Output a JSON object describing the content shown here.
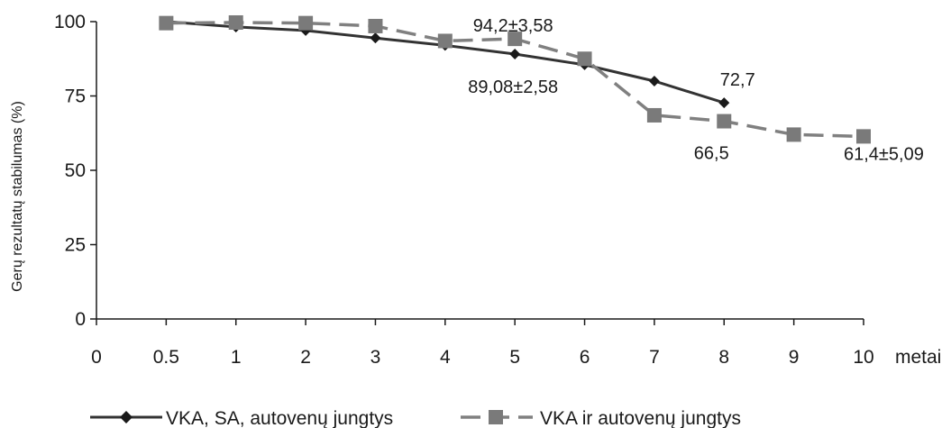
{
  "chart_data": {
    "type": "line",
    "title": "",
    "ylabel": "Gerų rezultatų stabilumas (%)",
    "xlabel": "metai",
    "categories": [
      "0",
      "0.5",
      "1",
      "2",
      "3",
      "4",
      "5",
      "6",
      "7",
      "8",
      "9",
      "10"
    ],
    "ylim": [
      0,
      100
    ],
    "yticks": [
      0,
      25,
      50,
      75,
      100
    ],
    "grid": false,
    "legend_position": "bottom",
    "series": [
      {
        "name": "VKA, SA, autovenų jungtys",
        "style": "solid",
        "marker": "diamond",
        "color": "#333333",
        "values": [
          null,
          100,
          98.2,
          97,
          94.5,
          92,
          89.08,
          85.5,
          80,
          72.7,
          null,
          null
        ]
      },
      {
        "name": "VKA ir autovenų jungtys",
        "style": "dashed",
        "marker": "square",
        "color": "#808080",
        "values": [
          null,
          99.5,
          99.7,
          99.5,
          98.5,
          93.5,
          94.2,
          87.5,
          68.5,
          66.5,
          62,
          61.4
        ]
      }
    ],
    "annotations": [
      {
        "text": "94,2±3,58",
        "category": "5",
        "value": 94.2
      },
      {
        "text": "89,08±2,58",
        "category": "5",
        "value": 89.08
      },
      {
        "text": "72,7",
        "category": "8",
        "value": 72.7
      },
      {
        "text": "66,5",
        "category": "8",
        "value": 66.5
      },
      {
        "text": "61,4±5,09",
        "category": "10",
        "value": 61.4
      }
    ]
  }
}
